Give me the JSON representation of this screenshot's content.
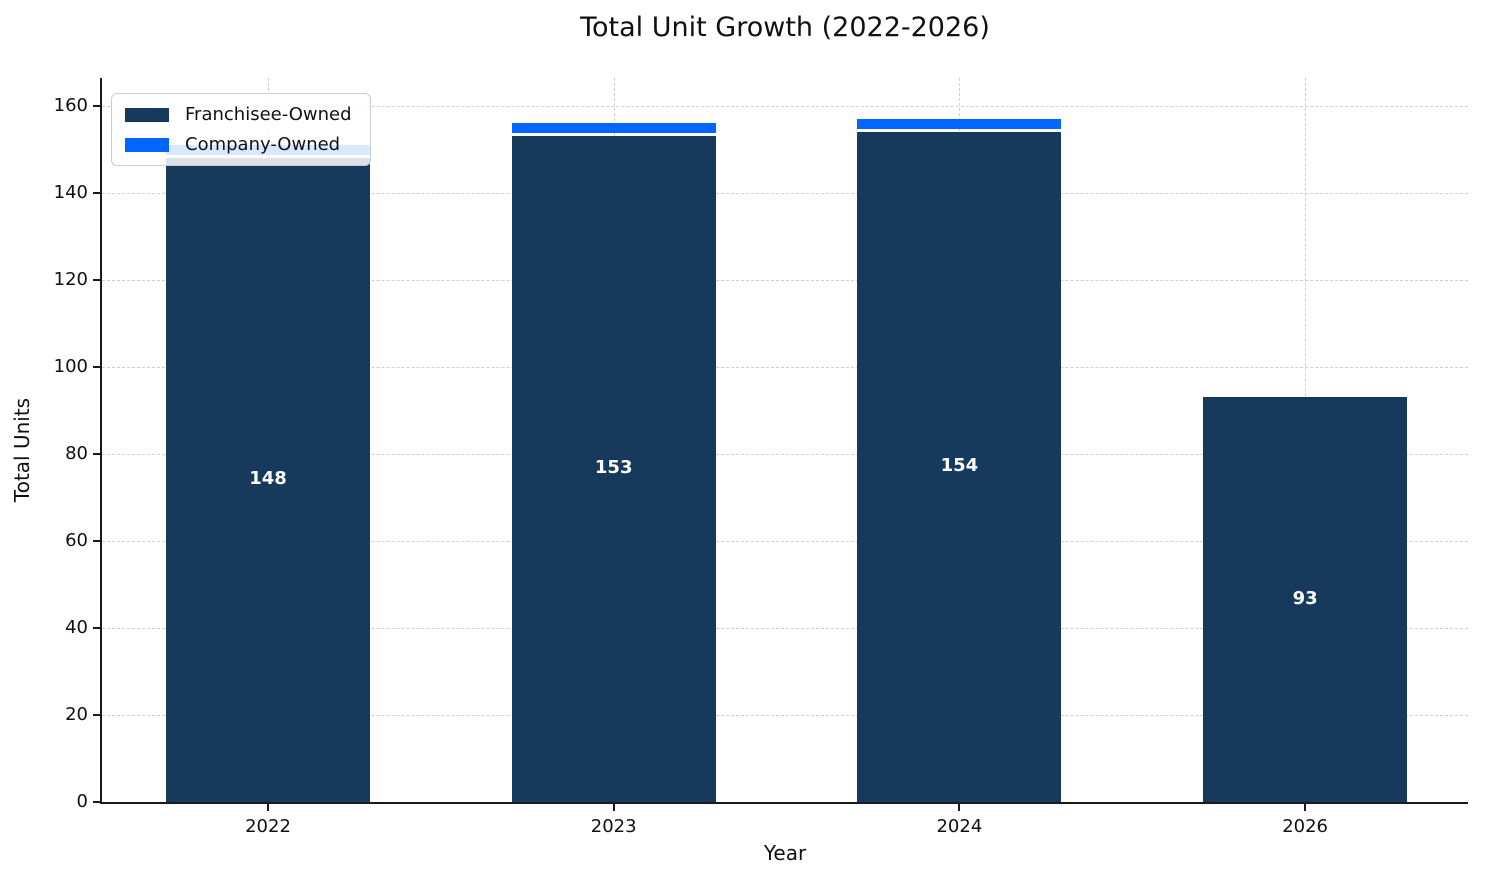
{
  "chart_data": {
    "type": "bar",
    "stacked": true,
    "title": "Total Unit Growth (2022-2026)",
    "xlabel": "Year",
    "ylabel": "Total Units",
    "categories": [
      "2022",
      "2023",
      "2024",
      "2026"
    ],
    "series": [
      {
        "name": "Franchisee-Owned",
        "color": "#17395C",
        "values": [
          148,
          153,
          154,
          93
        ]
      },
      {
        "name": "Company-Owned",
        "color": "#0066FF",
        "values": [
          3,
          3,
          3,
          0
        ]
      }
    ],
    "bar_value_labels": [
      "148",
      "153",
      "154",
      "93"
    ],
    "bar_value_label_color": "#ffffff",
    "segment_edge_color": "#ffffff",
    "yticks": [
      0,
      20,
      40,
      60,
      80,
      100,
      120,
      140,
      160
    ],
    "ylim": [
      0,
      166
    ],
    "grid": "dashed",
    "grid_color": "#cfcfcf",
    "legend_position": "upper left",
    "axis_color": "#1a1a1a"
  }
}
